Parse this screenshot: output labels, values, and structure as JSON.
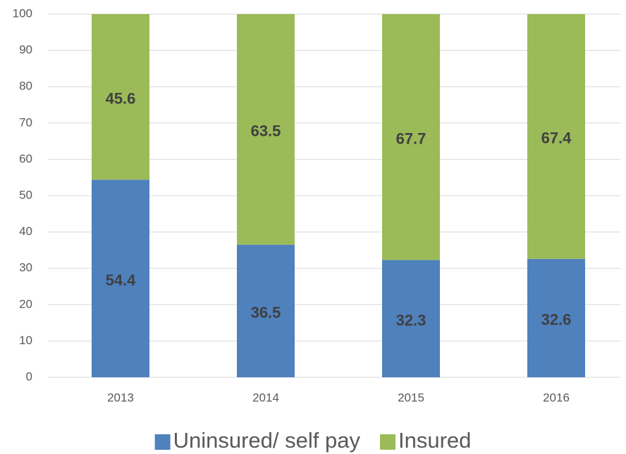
{
  "chart_data": {
    "type": "bar",
    "stacked": true,
    "categories": [
      "2013",
      "2014",
      "2015",
      "2016"
    ],
    "series": [
      {
        "name": "Uninsured/ self pay",
        "color": "#4f81bd",
        "values": [
          54.4,
          36.5,
          32.3,
          32.6
        ]
      },
      {
        "name": "Insured",
        "color": "#9bbb59",
        "values": [
          45.6,
          63.5,
          67.7,
          67.4
        ]
      }
    ],
    "ylim": [
      0,
      100
    ],
    "yticks": [
      0,
      10,
      20,
      30,
      40,
      50,
      60,
      70,
      80,
      90,
      100
    ],
    "grid": true,
    "legend": "bottom"
  }
}
